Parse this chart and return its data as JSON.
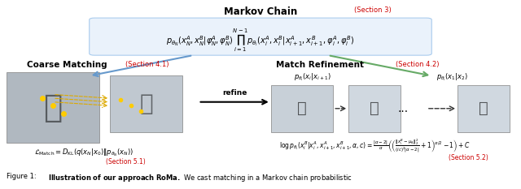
{
  "title": "Figure 1: Illustration of our approach RoMa. We cast matching in a Markov chain probabilistic",
  "markov_title": "Markov Chain",
  "markov_section": "(Section 3)",
  "coarse_title": "Coarse Matching",
  "coarse_section": "(Section 4.1)",
  "refine_title": "Match Refinement",
  "refine_section": "(Section 4.2)",
  "refine_arrow_label": "refine",
  "markov_eq": "$p_{\\theta_N}(x_N^A, x_N^B | \\varphi_N^A, \\varphi_N^B) \\prod_{i=1}^{N-1} p_{\\theta_i}(x_i^A, x_i^B | x_{i+1}^A, x_{i+1}^B, \\varphi_i^A, \\varphi_i^B)$",
  "coarse_eq": "$\\mathcal{L}_{\\mathrm{Match}} = D_{\\mathrm{KL}}(q(x_N | x_0) \\| p_{\\theta_N}(x_N))$",
  "coarse_section2": "(Section 5.1)",
  "refine_eq1": "$p_{\\theta_i}(x_i | x_{i+1})$",
  "refine_eq2": "$p_{\\theta_i}(x_1 | x_2)$",
  "refine_eq3": "$\\log p_{\\theta_i}(x_i^B | x_i^A, x_{i+1}^A, x_{i+1}^B, \\alpha, c) = \\frac{|\\alpha-2|}{\\alpha}\\left(\\left(\\frac{\\|x_i^B - \\mu_{\\theta_i}\\|_2^2}{(ic)^2|\\alpha-2|}+1\\right)^{\\alpha/2}-1\\right)+C$",
  "refine_section2": "(Section 5.2)",
  "bg_color": "#ffffff",
  "section_color": "#cc0000",
  "arrow_left_color": "#6699cc",
  "arrow_right_color": "#66aa66",
  "dotted_arrow_color": "#333333",
  "refine_arrow_color": "#000000"
}
